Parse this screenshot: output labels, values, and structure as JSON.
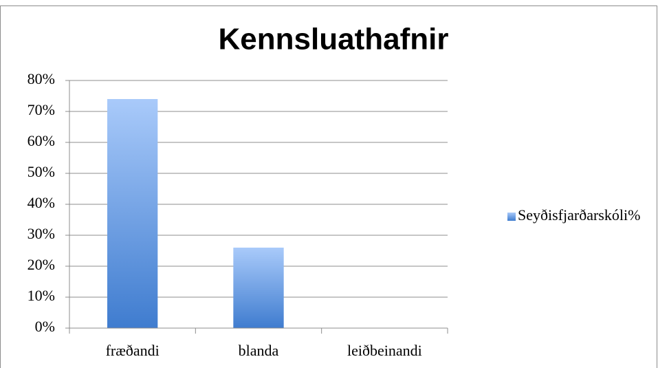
{
  "chart_data": {
    "type": "bar",
    "title": "Kennsluathafnir",
    "categories": [
      "fræðandi",
      "blanda",
      "leiðbeinandi"
    ],
    "series": [
      {
        "name": "Seyðisfjarðarskóli%",
        "color": "#3f7ccf",
        "values": [
          74,
          26,
          0
        ]
      }
    ],
    "ylim": [
      0,
      80
    ],
    "yticks": [
      {
        "value": 0,
        "label": "0%"
      },
      {
        "value": 10,
        "label": "10%"
      },
      {
        "value": 20,
        "label": "20%"
      },
      {
        "value": 30,
        "label": "30%"
      },
      {
        "value": 40,
        "label": "40%"
      },
      {
        "value": 50,
        "label": "50%"
      },
      {
        "value": 60,
        "label": "60%"
      },
      {
        "value": 70,
        "label": "70%"
      },
      {
        "value": 80,
        "label": "80%"
      }
    ],
    "grid": true,
    "legend": "right"
  }
}
